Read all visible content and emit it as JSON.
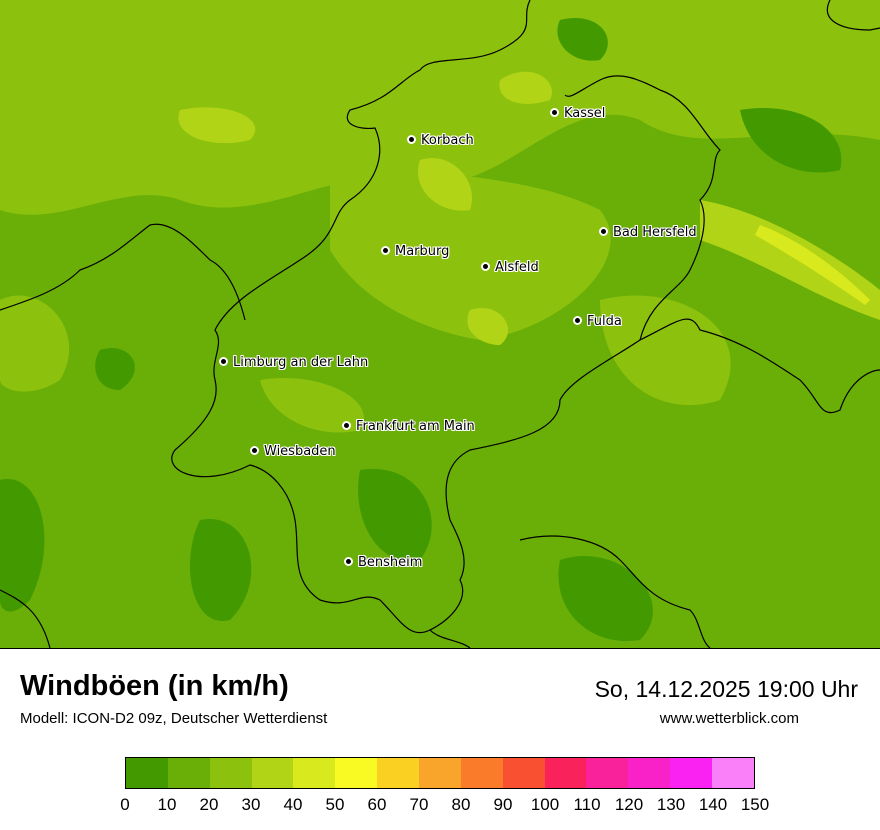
{
  "map": {
    "title": "Windböen (in km/h)",
    "model": "Modell: ICON-D2 09z, Deutscher Wetterdienst",
    "datetime": "So, 14.12.2025 19:00 Uhr",
    "website": "www.wetterblick.com",
    "cities": [
      {
        "name": "Kassel"
      },
      {
        "name": "Korbach"
      },
      {
        "name": "Bad Hersfeld"
      },
      {
        "name": "Marburg"
      },
      {
        "name": "Alsfeld"
      },
      {
        "name": "Fulda"
      },
      {
        "name": "Limburg an der Lahn"
      },
      {
        "name": "Frankfurt am Main"
      },
      {
        "name": "Wiesbaden"
      },
      {
        "name": "Bensheim"
      }
    ]
  },
  "legend": {
    "unit": "km/h",
    "ticks": [
      "0",
      "10",
      "20",
      "30",
      "40",
      "50",
      "60",
      "70",
      "80",
      "90",
      "100",
      "110",
      "120",
      "130",
      "140",
      "150"
    ],
    "colors": [
      "#429a00",
      "#6aae08",
      "#8cc10e",
      "#b2d417",
      "#d8e91d",
      "#f9f924",
      "#fad023",
      "#f9a52c",
      "#fa7b2a",
      "#fa5032",
      "#f9225a",
      "#f9229a",
      "#f922c8",
      "#f922f2",
      "#fa80f9"
    ]
  }
}
